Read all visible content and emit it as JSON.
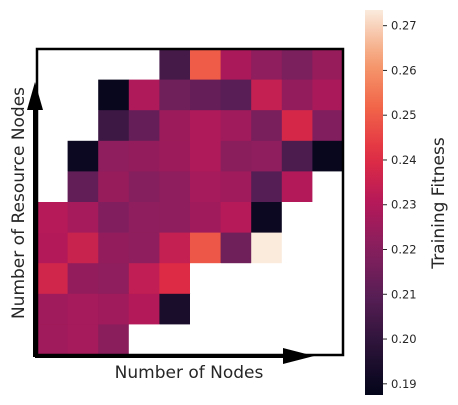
{
  "chart_data": {
    "type": "heatmap",
    "xlabel": "Number of Nodes",
    "ylabel": "Number of Resource Nodes",
    "colorbar_label": "Training Fitness",
    "colorbar_range": [
      0.1875,
      0.2735
    ],
    "colorbar_ticks": [
      "0.19",
      "0.20",
      "0.21",
      "0.22",
      "0.23",
      "0.24",
      "0.25",
      "0.26",
      "0.27"
    ],
    "colormap": "rocket",
    "grid_size": [
      10,
      10
    ],
    "empty_color": "#ffffff",
    "values": [
      [
        null,
        null,
        null,
        null,
        0.205,
        0.25,
        0.228,
        0.222,
        0.218,
        0.224
      ],
      [
        null,
        null,
        0.189,
        0.229,
        0.215,
        0.213,
        0.21,
        0.234,
        0.223,
        0.228
      ],
      [
        null,
        null,
        0.203,
        0.213,
        0.225,
        0.229,
        0.226,
        0.217,
        0.238,
        0.219
      ],
      [
        null,
        0.19,
        0.222,
        0.223,
        0.225,
        0.229,
        0.221,
        0.222,
        0.207,
        0.189
      ],
      [
        null,
        0.212,
        0.224,
        0.22,
        0.222,
        0.227,
        0.226,
        0.209,
        0.23,
        null
      ],
      [
        0.231,
        0.227,
        0.219,
        0.222,
        0.222,
        0.226,
        0.231,
        0.19,
        null,
        null
      ],
      [
        0.23,
        0.235,
        0.223,
        0.222,
        0.234,
        0.249,
        0.215,
        0.274,
        null,
        null
      ],
      [
        0.237,
        0.223,
        0.222,
        0.233,
        0.24,
        null,
        null,
        null,
        null,
        null
      ],
      [
        0.226,
        0.227,
        0.226,
        0.23,
        0.194,
        null,
        null,
        null,
        null,
        null
      ],
      [
        0.226,
        0.227,
        0.221,
        null,
        null,
        null,
        null,
        null,
        null,
        null
      ]
    ]
  }
}
